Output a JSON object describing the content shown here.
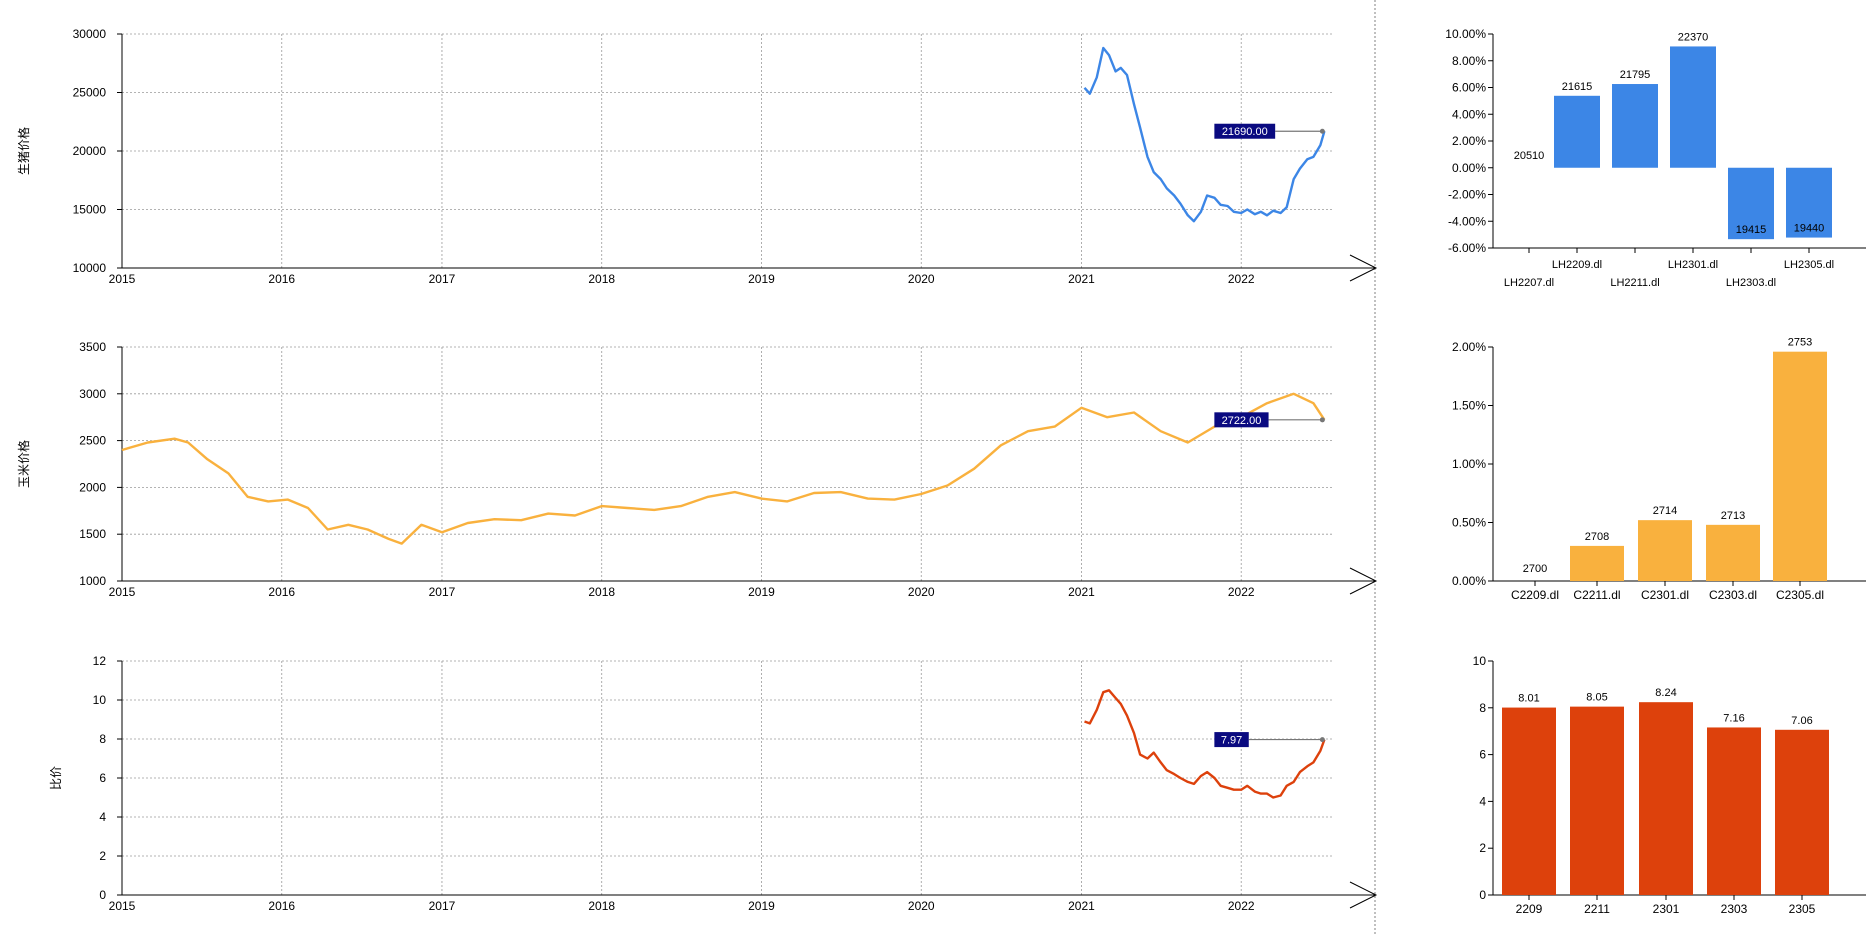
{
  "colors": {
    "hog": "#3c86e6",
    "corn": "#f9b13e",
    "ratio": "#dd410c",
    "latest_badge": "#0a0a80",
    "grid": "#9a9a9a",
    "axis": "#000000"
  },
  "chart_data": [
    {
      "type": "line",
      "ylabel": "生猪价格",
      "xlabel": "",
      "x_ticks": [
        "2015",
        "2016",
        "2017",
        "2018",
        "2019",
        "2020",
        "2021",
        "2022"
      ],
      "xlim": [
        "2015-01-01",
        "2022-08-01"
      ],
      "ylim": [
        10000,
        30000
      ],
      "y_ticks": [
        "10000",
        "15000",
        "20000",
        "25000",
        "30000"
      ],
      "grid": true,
      "color": "#3c86e6",
      "latest_label": "21690.00",
      "latest_value": 21690,
      "series": [
        {
          "points": [
            [
              "2021-01-08",
              25400
            ],
            [
              "2021-01-20",
              24900
            ],
            [
              "2021-02-05",
              26300
            ],
            [
              "2021-02-20",
              28800
            ],
            [
              "2021-03-05",
              28200
            ],
            [
              "2021-03-20",
              26800
            ],
            [
              "2021-04-01",
              27100
            ],
            [
              "2021-04-15",
              26500
            ],
            [
              "2021-05-01",
              24000
            ],
            [
              "2021-05-15",
              22000
            ],
            [
              "2021-06-01",
              19500
            ],
            [
              "2021-06-15",
              18200
            ],
            [
              "2021-07-01",
              17600
            ],
            [
              "2021-07-15",
              16800
            ],
            [
              "2021-08-01",
              16200
            ],
            [
              "2021-08-15",
              15500
            ],
            [
              "2021-09-01",
              14500
            ],
            [
              "2021-09-15",
              14000
            ],
            [
              "2021-10-01",
              14800
            ],
            [
              "2021-10-15",
              16200
            ],
            [
              "2021-11-01",
              16000
            ],
            [
              "2021-11-15",
              15400
            ],
            [
              "2021-12-01",
              15300
            ],
            [
              "2021-12-15",
              14800
            ],
            [
              "2022-01-01",
              14700
            ],
            [
              "2022-01-15",
              15000
            ],
            [
              "2022-02-01",
              14600
            ],
            [
              "2022-02-15",
              14800
            ],
            [
              "2022-03-01",
              14500
            ],
            [
              "2022-03-15",
              14900
            ],
            [
              "2022-04-01",
              14700
            ],
            [
              "2022-04-15",
              15200
            ],
            [
              "2022-05-01",
              17600
            ],
            [
              "2022-05-15",
              18500
            ],
            [
              "2022-06-01",
              19300
            ],
            [
              "2022-06-15",
              19500
            ],
            [
              "2022-07-01",
              20500
            ],
            [
              "2022-07-10",
              21690
            ]
          ]
        }
      ]
    },
    {
      "type": "line",
      "ylabel": "玉米价格",
      "xlabel": "",
      "x_ticks": [
        "2015",
        "2016",
        "2017",
        "2018",
        "2019",
        "2020",
        "2021",
        "2022"
      ],
      "xlim": [
        "2015-01-01",
        "2022-08-01"
      ],
      "ylim": [
        1000,
        3500
      ],
      "y_ticks": [
        "1000",
        "1500",
        "2000",
        "2500",
        "3000",
        "3500"
      ],
      "grid": true,
      "color": "#f9b13e",
      "latest_label": "2722.00",
      "latest_value": 2722,
      "series": [
        {
          "points": [
            [
              "2015-01-01",
              2400
            ],
            [
              "2015-03-01",
              2480
            ],
            [
              "2015-05-01",
              2520
            ],
            [
              "2015-06-01",
              2480
            ],
            [
              "2015-07-15",
              2300
            ],
            [
              "2015-09-01",
              2150
            ],
            [
              "2015-10-15",
              1900
            ],
            [
              "2015-12-01",
              1850
            ],
            [
              "2016-01-15",
              1870
            ],
            [
              "2016-03-01",
              1780
            ],
            [
              "2016-04-15",
              1550
            ],
            [
              "2016-06-01",
              1600
            ],
            [
              "2016-07-15",
              1550
            ],
            [
              "2016-09-01",
              1450
            ],
            [
              "2016-10-01",
              1400
            ],
            [
              "2016-11-15",
              1600
            ],
            [
              "2017-01-01",
              1520
            ],
            [
              "2017-03-01",
              1620
            ],
            [
              "2017-05-01",
              1660
            ],
            [
              "2017-07-01",
              1650
            ],
            [
              "2017-09-01",
              1720
            ],
            [
              "2017-11-01",
              1700
            ],
            [
              "2018-01-01",
              1800
            ],
            [
              "2018-03-01",
              1780
            ],
            [
              "2018-05-01",
              1760
            ],
            [
              "2018-07-01",
              1800
            ],
            [
              "2018-09-01",
              1900
            ],
            [
              "2018-11-01",
              1950
            ],
            [
              "2019-01-01",
              1880
            ],
            [
              "2019-03-01",
              1850
            ],
            [
              "2019-05-01",
              1940
            ],
            [
              "2019-07-01",
              1950
            ],
            [
              "2019-09-01",
              1880
            ],
            [
              "2019-11-01",
              1870
            ],
            [
              "2020-01-01",
              1930
            ],
            [
              "2020-03-01",
              2020
            ],
            [
              "2020-05-01",
              2200
            ],
            [
              "2020-07-01",
              2450
            ],
            [
              "2020-09-01",
              2600
            ],
            [
              "2020-11-01",
              2650
            ],
            [
              "2021-01-01",
              2850
            ],
            [
              "2021-03-01",
              2750
            ],
            [
              "2021-05-01",
              2800
            ],
            [
              "2021-07-01",
              2600
            ],
            [
              "2021-09-01",
              2480
            ],
            [
              "2021-11-01",
              2650
            ],
            [
              "2022-01-01",
              2750
            ],
            [
              "2022-03-01",
              2900
            ],
            [
              "2022-05-01",
              3000
            ],
            [
              "2022-06-15",
              2900
            ],
            [
              "2022-07-10",
              2722
            ]
          ]
        }
      ]
    },
    {
      "type": "line",
      "ylabel": "比价",
      "xlabel": "",
      "x_ticks": [
        "2015",
        "2016",
        "2017",
        "2018",
        "2019",
        "2020",
        "2021",
        "2022"
      ],
      "xlim": [
        "2015-01-01",
        "2022-08-01"
      ],
      "ylim": [
        0,
        12
      ],
      "y_ticks": [
        "0",
        "2",
        "4",
        "6",
        "8",
        "10",
        "12"
      ],
      "grid": true,
      "color": "#dd410c",
      "latest_label": "7.97",
      "latest_value": 7.97,
      "series": [
        {
          "points": [
            [
              "2021-01-08",
              8.9
            ],
            [
              "2021-01-20",
              8.8
            ],
            [
              "2021-02-05",
              9.5
            ],
            [
              "2021-02-20",
              10.4
            ],
            [
              "2021-03-05",
              10.5
            ],
            [
              "2021-03-20",
              10.1
            ],
            [
              "2021-04-01",
              9.8
            ],
            [
              "2021-04-15",
              9.2
            ],
            [
              "2021-05-01",
              8.3
            ],
            [
              "2021-05-15",
              7.2
            ],
            [
              "2021-06-01",
              7.0
            ],
            [
              "2021-06-15",
              7.3
            ],
            [
              "2021-07-01",
              6.8
            ],
            [
              "2021-07-15",
              6.4
            ],
            [
              "2021-08-01",
              6.2
            ],
            [
              "2021-08-15",
              6.0
            ],
            [
              "2021-09-01",
              5.8
            ],
            [
              "2021-09-15",
              5.7
            ],
            [
              "2021-10-01",
              6.1
            ],
            [
              "2021-10-15",
              6.3
            ],
            [
              "2021-11-01",
              6.0
            ],
            [
              "2021-11-15",
              5.6
            ],
            [
              "2021-12-01",
              5.5
            ],
            [
              "2021-12-15",
              5.4
            ],
            [
              "2022-01-01",
              5.4
            ],
            [
              "2022-01-15",
              5.6
            ],
            [
              "2022-02-01",
              5.3
            ],
            [
              "2022-02-15",
              5.2
            ],
            [
              "2022-03-01",
              5.2
            ],
            [
              "2022-03-15",
              5.0
            ],
            [
              "2022-04-01",
              5.1
            ],
            [
              "2022-04-15",
              5.6
            ],
            [
              "2022-05-01",
              5.8
            ],
            [
              "2022-05-15",
              6.3
            ],
            [
              "2022-06-01",
              6.6
            ],
            [
              "2022-06-15",
              6.8
            ],
            [
              "2022-07-01",
              7.4
            ],
            [
              "2022-07-10",
              7.97
            ]
          ]
        }
      ]
    },
    {
      "type": "bar",
      "categories": [
        "LH2207.dl",
        "LH2209.dl",
        "LH2211.dl",
        "LH2301.dl",
        "LH2303.dl",
        "LH2305.dl"
      ],
      "values": [
        0.0,
        5.38,
        6.26,
        9.07,
        -5.34,
        -5.22
      ],
      "value_labels": [
        "20510",
        "21615",
        "21795",
        "22370",
        "19415",
        "19440"
      ],
      "ylim": [
        -6,
        10
      ],
      "y_ticks": [
        "-6.00%",
        "-4.00%",
        "-2.00%",
        "0.00%",
        "2.00%",
        "4.00%",
        "6.00%",
        "8.00%",
        "10.00%"
      ],
      "color": "#3c86e6"
    },
    {
      "type": "bar",
      "categories": [
        "C2209.dl",
        "C2211.dl",
        "C2301.dl",
        "C2303.dl",
        "C2305.dl"
      ],
      "values": [
        0.0,
        0.3,
        0.52,
        0.48,
        1.96
      ],
      "value_labels": [
        "2700",
        "2708",
        "2714",
        "2713",
        "2753"
      ],
      "ylim": [
        0,
        2
      ],
      "y_ticks": [
        "0.00%",
        "0.50%",
        "1.00%",
        "1.50%",
        "2.00%"
      ],
      "color": "#f9b13e"
    },
    {
      "type": "bar",
      "categories": [
        "2209",
        "2211",
        "2301",
        "2303",
        "2305"
      ],
      "values": [
        8.01,
        8.05,
        8.24,
        7.16,
        7.06
      ],
      "value_labels": [
        "8.01",
        "8.05",
        "8.24",
        "7.16",
        "7.06"
      ],
      "ylim": [
        0,
        10
      ],
      "y_ticks": [
        "0",
        "2",
        "4",
        "6",
        "8",
        "10"
      ],
      "color": "#dd410c"
    }
  ]
}
